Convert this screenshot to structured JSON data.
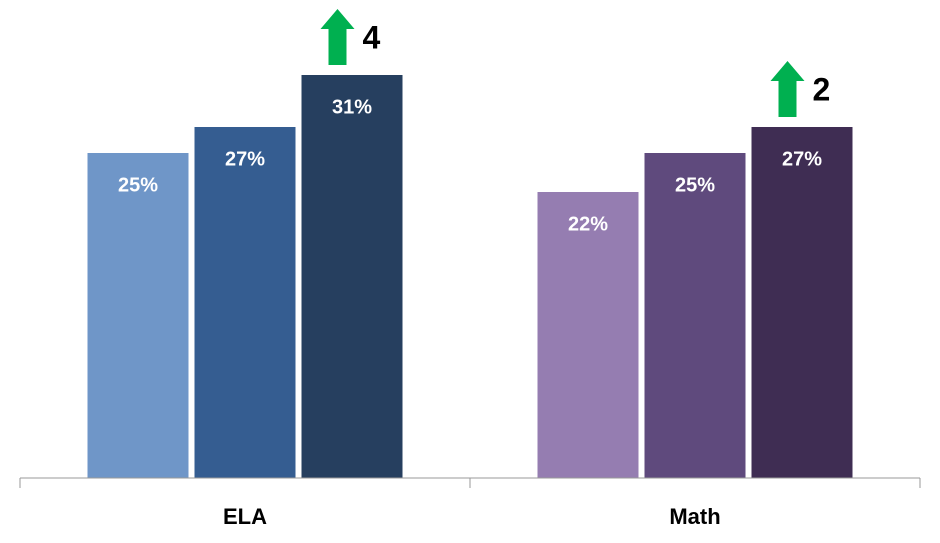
{
  "chart_data": {
    "type": "bar",
    "ylim": [
      0,
      36
    ],
    "groups": [
      {
        "label": "ELA",
        "values": [
          25,
          27,
          31
        ],
        "value_labels": [
          "25%",
          "27%",
          "31%"
        ],
        "colors": [
          "#6f96c8",
          "#355d91",
          "#263f5f"
        ],
        "change": 4
      },
      {
        "label": "Math",
        "values": [
          22,
          25,
          27
        ],
        "value_labels": [
          "22%",
          "25%",
          "27%"
        ],
        "colors": [
          "#957db1",
          "#5f4a7d",
          "#3f2d53"
        ],
        "change": 2
      }
    ],
    "arrow_color": "#00b050"
  }
}
